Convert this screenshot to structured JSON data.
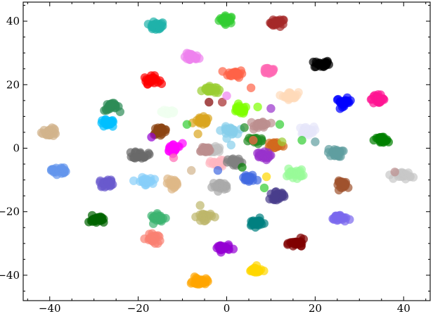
{
  "chart_data": {
    "type": "scatter",
    "title": "",
    "xlabel": "",
    "ylabel": "",
    "xlim": [
      -46,
      46
    ],
    "ylim": [
      -48,
      46
    ],
    "xticks": [
      -40,
      -20,
      0,
      20,
      40
    ],
    "yticks": [
      -40,
      -20,
      0,
      20,
      40
    ],
    "xtick_labels": [
      "−40",
      "−20",
      "0",
      "20",
      "40"
    ],
    "ytick_labels": [
      "−40",
      "−20",
      "0",
      "20",
      "40"
    ],
    "grid": false,
    "legend": "none",
    "marker_opacity": 0.7,
    "clusters": [
      {
        "x": 0,
        "y": 40.5,
        "color": "#32cd32"
      },
      {
        "x": 11.5,
        "y": 39.5,
        "color": "#a52a2a"
      },
      {
        "x": -16,
        "y": 38.3,
        "color": "#20b2aa"
      },
      {
        "x": -8,
        "y": 28.6,
        "color": "#ee82ee"
      },
      {
        "x": 21.5,
        "y": 26.5,
        "color": "#000000"
      },
      {
        "x": 9.5,
        "y": 24.5,
        "color": "#ff69b4"
      },
      {
        "x": 2,
        "y": 23.5,
        "color": "#ff6347"
      },
      {
        "x": -17,
        "y": 21.5,
        "color": "#ff0000"
      },
      {
        "x": -4,
        "y": 18.5,
        "color": "#9acd32"
      },
      {
        "x": 14.5,
        "y": 16.5,
        "color": "#ffdab9"
      },
      {
        "x": 26.5,
        "y": 14.5,
        "color": "#0000ff"
      },
      {
        "x": 34,
        "y": 15.5,
        "color": "#ff1493"
      },
      {
        "x": -26,
        "y": 13,
        "color": "#2e8b57"
      },
      {
        "x": -13,
        "y": 11.5,
        "color": "#f0fff0"
      },
      {
        "x": 3,
        "y": 12,
        "color": "#7fff00"
      },
      {
        "x": -27,
        "y": 7.8,
        "color": "#00bfff"
      },
      {
        "x": -5.5,
        "y": 8.5,
        "color": "#daa520"
      },
      {
        "x": 8,
        "y": 7.5,
        "color": "#bc8f8f"
      },
      {
        "x": -40,
        "y": 5,
        "color": "#d2b48c"
      },
      {
        "x": -15,
        "y": 5.5,
        "color": "#8b4513"
      },
      {
        "x": 0.5,
        "y": 5.5,
        "color": "#87ceeb"
      },
      {
        "x": 18,
        "y": 5.5,
        "color": "#e6e6fa"
      },
      {
        "x": 35,
        "y": 2.5,
        "color": "#008000"
      },
      {
        "x": 6.5,
        "y": 2.5,
        "color": "#228b22"
      },
      {
        "x": 11,
        "y": 1,
        "color": "#d2691e"
      },
      {
        "x": -12,
        "y": 0,
        "color": "#ff00ff"
      },
      {
        "x": -3,
        "y": -0.5,
        "color": "#c0c0c0"
      },
      {
        "x": -19.5,
        "y": -2,
        "color": "#696969"
      },
      {
        "x": -5,
        "y": -0.5,
        "color": "#bc8f8f"
      },
      {
        "x": 8,
        "y": -2.5,
        "color": "#9932cc"
      },
      {
        "x": 24.5,
        "y": -1.5,
        "color": "#5f9ea0"
      },
      {
        "x": -38,
        "y": -7,
        "color": "#6495ed"
      },
      {
        "x": -2,
        "y": -5,
        "color": "#ffb6c1"
      },
      {
        "x": 2,
        "y": -4.5,
        "color": "#808080"
      },
      {
        "x": 5,
        "y": -9.5,
        "color": "#4169e1"
      },
      {
        "x": 15.5,
        "y": -8,
        "color": "#98fb98"
      },
      {
        "x": -27,
        "y": -11,
        "color": "#6a5acd"
      },
      {
        "x": -18.5,
        "y": -10.5,
        "color": "#87cefa"
      },
      {
        "x": -12,
        "y": -11,
        "color": "#deb887"
      },
      {
        "x": -1.5,
        "y": -12,
        "color": "#a9a9a9"
      },
      {
        "x": 26.5,
        "y": -11.5,
        "color": "#a0522d"
      },
      {
        "x": 40,
        "y": -8.5,
        "color": "#c8c8c8"
      },
      {
        "x": 11.5,
        "y": -15,
        "color": "#483d8b"
      },
      {
        "x": -15.5,
        "y": -22,
        "color": "#3cb371"
      },
      {
        "x": -5,
        "y": -21.5,
        "color": "#bdb76b"
      },
      {
        "x": -29.5,
        "y": -22.5,
        "color": "#006400"
      },
      {
        "x": 25.5,
        "y": -22,
        "color": "#7b68ee"
      },
      {
        "x": 6.5,
        "y": -23.5,
        "color": "#008080"
      },
      {
        "x": -16.5,
        "y": -28.5,
        "color": "#fa8072"
      },
      {
        "x": 16,
        "y": -30,
        "color": "#800000"
      },
      {
        "x": -1,
        "y": -31.5,
        "color": "#9400d3"
      },
      {
        "x": 6.5,
        "y": -38.5,
        "color": "#ffd700"
      },
      {
        "x": -6,
        "y": -42,
        "color": "#ffa500"
      }
    ],
    "stray_points": [
      {
        "x": -2,
        "y": 17.5,
        "color": "#9acd32"
      },
      {
        "x": -1,
        "y": 14.5,
        "color": "#a52a2a"
      },
      {
        "x": 5.5,
        "y": 19,
        "color": "#ff6347"
      },
      {
        "x": 0,
        "y": 16.5,
        "color": "#ee82ee"
      },
      {
        "x": 7,
        "y": 13,
        "color": "#7fff00"
      },
      {
        "x": -6.5,
        "y": 4.5,
        "color": "#daa520"
      },
      {
        "x": 4,
        "y": 6.5,
        "color": "#228b22"
      },
      {
        "x": -10,
        "y": 1.5,
        "color": "#ff00ff"
      },
      {
        "x": 12,
        "y": 7.5,
        "color": "#32cd32"
      },
      {
        "x": 10,
        "y": 12.5,
        "color": "#9932cc"
      },
      {
        "x": 1,
        "y": 1,
        "color": "#87ceeb"
      },
      {
        "x": -8,
        "y": -7,
        "color": "#d2b48c"
      },
      {
        "x": -12,
        "y": -3,
        "color": "#ff69b4"
      },
      {
        "x": 3.5,
        "y": -6,
        "color": "#008000"
      },
      {
        "x": 9,
        "y": -9,
        "color": "#ffd700"
      },
      {
        "x": 20,
        "y": 2,
        "color": "#5f9ea0"
      },
      {
        "x": 38,
        "y": -7.5,
        "color": "#bc8f8f"
      },
      {
        "x": -4,
        "y": 14.5,
        "color": "#800000"
      },
      {
        "x": -2,
        "y": -7,
        "color": "#4169e1"
      },
      {
        "x": 12.5,
        "y": 2,
        "color": "#9acd32"
      },
      {
        "x": 14,
        "y": -6.5,
        "color": "#98fb98"
      },
      {
        "x": -6,
        "y": -18,
        "color": "#bdb76b"
      },
      {
        "x": -14.5,
        "y": 39.5,
        "color": "#20b2aa"
      },
      {
        "x": 6,
        "y": 2.5,
        "color": "#ff6347"
      },
      {
        "x": -9,
        "y": 7.5,
        "color": "#32cd32"
      },
      {
        "x": -17,
        "y": 3.5,
        "color": "#9400d3"
      },
      {
        "x": 8.5,
        "y": -12.5,
        "color": "#32cd32"
      },
      {
        "x": 17,
        "y": 2.5,
        "color": "#32cd32"
      }
    ]
  }
}
